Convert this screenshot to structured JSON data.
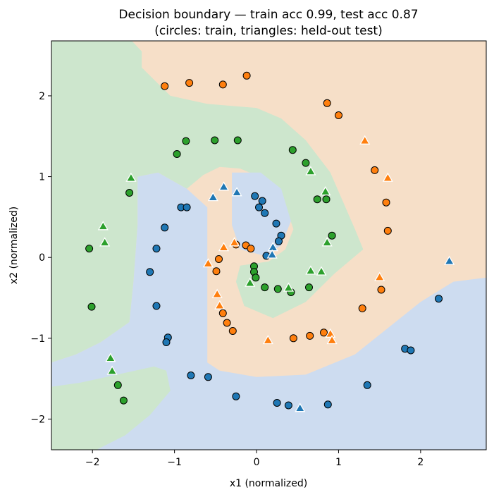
{
  "chart_data": {
    "type": "scatter",
    "title": "Decision boundary — train acc 0.99, test acc 0.87",
    "subtitle": "(circles: train, triangles: held-out test)",
    "xlabel": "x1 (normalized)",
    "ylabel": "x2 (normalized)",
    "xlim": [
      -2.5,
      2.8
    ],
    "ylim": [
      -2.38,
      2.68
    ],
    "xticks": [
      -2,
      -1,
      0,
      1,
      2
    ],
    "yticks": [
      -2,
      -1,
      0,
      1,
      2
    ],
    "grid": false,
    "colors": {
      "class_blue": "#1f77b4",
      "class_orange": "#ff7f0e",
      "class_green": "#2ca02c",
      "region_blue": "#cddcf0",
      "region_orange": "#f6dfc8",
      "region_green": "#cde6cd"
    },
    "regions": {
      "green": [
        [
          -2.5,
          2.68
        ],
        [
          -1.52,
          2.68
        ],
        [
          -1.4,
          2.55
        ],
        [
          -1.4,
          2.35
        ],
        [
          -1.05,
          2.0
        ],
        [
          -0.6,
          1.9
        ],
        [
          0.0,
          1.85
        ],
        [
          0.3,
          1.72
        ],
        [
          0.6,
          1.45
        ],
        [
          0.9,
          1.05
        ],
        [
          1.2,
          0.35
        ],
        [
          1.3,
          0.1
        ],
        [
          0.95,
          -0.2
        ],
        [
          0.6,
          -0.55
        ],
        [
          0.2,
          -0.75
        ],
        [
          -0.15,
          -0.6
        ],
        [
          -0.25,
          -0.3
        ],
        [
          -0.2,
          -0.1
        ],
        [
          0.15,
          -0.05
        ],
        [
          0.35,
          0.1
        ],
        [
          0.45,
          0.35
        ],
        [
          0.35,
          0.65
        ],
        [
          0.15,
          0.95
        ],
        [
          -0.2,
          1.1
        ],
        [
          -0.45,
          1.12
        ],
        [
          -0.65,
          1.02
        ],
        [
          -0.85,
          0.85
        ],
        [
          -1.2,
          1.05
        ],
        [
          -1.45,
          1.0
        ],
        [
          -1.45,
          0.4
        ],
        [
          -1.5,
          -0.3
        ],
        [
          -1.55,
          -0.8
        ],
        [
          -1.9,
          -1.05
        ],
        [
          -2.2,
          -1.2
        ],
        [
          -2.5,
          -1.3
        ]
      ],
      "blue": [
        [
          -2.5,
          -1.3
        ],
        [
          -2.2,
          -1.2
        ],
        [
          -1.9,
          -1.05
        ],
        [
          -1.55,
          -0.8
        ],
        [
          -1.5,
          -0.3
        ],
        [
          -1.45,
          0.4
        ],
        [
          -1.45,
          1.0
        ],
        [
          -1.2,
          1.05
        ],
        [
          -0.85,
          0.85
        ],
        [
          -0.6,
          0.62
        ],
        [
          -0.6,
          -1.3
        ],
        [
          -0.45,
          -1.4
        ],
        [
          0.0,
          -1.48
        ],
        [
          0.6,
          -1.45
        ],
        [
          1.2,
          -1.2
        ],
        [
          2.0,
          -0.55
        ],
        [
          2.4,
          -0.3
        ],
        [
          2.8,
          -0.25
        ],
        [
          2.8,
          -2.38
        ],
        [
          -2.5,
          -2.38
        ]
      ],
      "blue_inner": [
        [
          -0.3,
          1.05
        ],
        [
          0.05,
          1.05
        ],
        [
          0.3,
          0.85
        ],
        [
          0.42,
          0.45
        ],
        [
          0.3,
          0.15
        ],
        [
          0.1,
          0.02
        ],
        [
          -0.2,
          0.1
        ],
        [
          -0.3,
          0.4
        ]
      ],
      "green_bottom": [
        [
          -2.5,
          -1.6
        ],
        [
          -2.15,
          -1.55
        ],
        [
          -1.25,
          -1.35
        ],
        [
          -1.1,
          -1.4
        ],
        [
          -1.05,
          -1.65
        ],
        [
          -1.3,
          -1.95
        ],
        [
          -1.6,
          -2.2
        ],
        [
          -1.95,
          -2.38
        ],
        [
          -2.5,
          -2.38
        ]
      ]
    },
    "series": [
      {
        "name": "circles: train",
        "marker": "circle",
        "points": [
          {
            "x": -1.12,
            "y": 2.12,
            "c": "orange"
          },
          {
            "x": -0.82,
            "y": 2.16,
            "c": "orange"
          },
          {
            "x": -0.41,
            "y": 2.14,
            "c": "orange"
          },
          {
            "x": -0.12,
            "y": 2.25,
            "c": "orange"
          },
          {
            "x": 0.86,
            "y": 1.91,
            "c": "orange"
          },
          {
            "x": 1.0,
            "y": 1.76,
            "c": "orange"
          },
          {
            "x": 1.44,
            "y": 1.08,
            "c": "orange"
          },
          {
            "x": 1.58,
            "y": 0.68,
            "c": "orange"
          },
          {
            "x": 1.6,
            "y": 0.33,
            "c": "orange"
          },
          {
            "x": -0.25,
            "y": 0.16,
            "c": "orange"
          },
          {
            "x": -0.13,
            "y": 0.15,
            "c": "orange"
          },
          {
            "x": -0.07,
            "y": 0.11,
            "c": "orange"
          },
          {
            "x": -0.46,
            "y": -0.02,
            "c": "orange"
          },
          {
            "x": -0.49,
            "y": -0.17,
            "c": "orange"
          },
          {
            "x": -0.41,
            "y": -0.69,
            "c": "orange"
          },
          {
            "x": -0.36,
            "y": -0.81,
            "c": "orange"
          },
          {
            "x": -0.29,
            "y": -0.91,
            "c": "orange"
          },
          {
            "x": 0.45,
            "y": -1.0,
            "c": "orange"
          },
          {
            "x": 0.65,
            "y": -0.97,
            "c": "orange"
          },
          {
            "x": 0.82,
            "y": -0.93,
            "c": "orange"
          },
          {
            "x": 1.29,
            "y": -0.63,
            "c": "orange"
          },
          {
            "x": 1.52,
            "y": -0.4,
            "c": "orange"
          },
          {
            "x": -0.97,
            "y": 1.28,
            "c": "green"
          },
          {
            "x": -0.86,
            "y": 1.44,
            "c": "green"
          },
          {
            "x": -0.51,
            "y": 1.45,
            "c": "green"
          },
          {
            "x": -0.23,
            "y": 1.45,
            "c": "green"
          },
          {
            "x": 0.44,
            "y": 1.33,
            "c": "green"
          },
          {
            "x": 0.6,
            "y": 1.17,
            "c": "green"
          },
          {
            "x": 0.74,
            "y": 0.72,
            "c": "green"
          },
          {
            "x": 0.85,
            "y": 0.72,
            "c": "green"
          },
          {
            "x": 0.92,
            "y": 0.27,
            "c": "green"
          },
          {
            "x": -1.55,
            "y": 0.8,
            "c": "green"
          },
          {
            "x": -2.04,
            "y": 0.11,
            "c": "green"
          },
          {
            "x": -2.01,
            "y": -0.61,
            "c": "green"
          },
          {
            "x": -0.03,
            "y": -0.11,
            "c": "green"
          },
          {
            "x": -0.03,
            "y": -0.18,
            "c": "green"
          },
          {
            "x": -0.01,
            "y": -0.25,
            "c": "green"
          },
          {
            "x": 0.1,
            "y": -0.37,
            "c": "green"
          },
          {
            "x": 0.26,
            "y": -0.39,
            "c": "green"
          },
          {
            "x": 0.42,
            "y": -0.43,
            "c": "green"
          },
          {
            "x": 0.64,
            "y": -0.37,
            "c": "green"
          },
          {
            "x": -1.69,
            "y": -1.58,
            "c": "green"
          },
          {
            "x": -1.62,
            "y": -1.77,
            "c": "green"
          },
          {
            "x": -0.02,
            "y": 0.76,
            "c": "blue"
          },
          {
            "x": 0.07,
            "y": 0.7,
            "c": "blue"
          },
          {
            "x": 0.03,
            "y": 0.62,
            "c": "blue"
          },
          {
            "x": 0.1,
            "y": 0.55,
            "c": "blue"
          },
          {
            "x": 0.24,
            "y": 0.42,
            "c": "blue"
          },
          {
            "x": 0.3,
            "y": 0.27,
            "c": "blue"
          },
          {
            "x": 0.27,
            "y": 0.2,
            "c": "blue"
          },
          {
            "x": 0.12,
            "y": 0.02,
            "c": "blue"
          },
          {
            "x": -0.92,
            "y": 0.62,
            "c": "blue"
          },
          {
            "x": -0.85,
            "y": 0.62,
            "c": "blue"
          },
          {
            "x": -1.12,
            "y": 0.37,
            "c": "blue"
          },
          {
            "x": -1.22,
            "y": 0.11,
            "c": "blue"
          },
          {
            "x": -1.3,
            "y": -0.18,
            "c": "blue"
          },
          {
            "x": -1.22,
            "y": -0.6,
            "c": "blue"
          },
          {
            "x": -1.08,
            "y": -0.99,
            "c": "blue"
          },
          {
            "x": -1.1,
            "y": -1.05,
            "c": "blue"
          },
          {
            "x": -0.8,
            "y": -1.46,
            "c": "blue"
          },
          {
            "x": -0.59,
            "y": -1.48,
            "c": "blue"
          },
          {
            "x": -0.25,
            "y": -1.72,
            "c": "blue"
          },
          {
            "x": 0.25,
            "y": -1.8,
            "c": "blue"
          },
          {
            "x": 0.39,
            "y": -1.83,
            "c": "blue"
          },
          {
            "x": 0.87,
            "y": -1.82,
            "c": "blue"
          },
          {
            "x": 1.35,
            "y": -1.58,
            "c": "blue"
          },
          {
            "x": 1.81,
            "y": -1.13,
            "c": "blue"
          },
          {
            "x": 1.88,
            "y": -1.15,
            "c": "blue"
          },
          {
            "x": 2.22,
            "y": -0.51,
            "c": "blue"
          }
        ]
      },
      {
        "name": "triangles: held-out test",
        "marker": "triangle",
        "points": [
          {
            "x": 1.32,
            "y": 1.44,
            "c": "orange"
          },
          {
            "x": 1.6,
            "y": 0.98,
            "c": "orange"
          },
          {
            "x": -0.4,
            "y": 0.12,
            "c": "orange"
          },
          {
            "x": -0.27,
            "y": 0.18,
            "c": "orange"
          },
          {
            "x": -0.59,
            "y": -0.08,
            "c": "orange"
          },
          {
            "x": -0.48,
            "y": -0.46,
            "c": "orange"
          },
          {
            "x": -0.45,
            "y": -0.6,
            "c": "orange"
          },
          {
            "x": 1.5,
            "y": -0.25,
            "c": "orange"
          },
          {
            "x": 0.14,
            "y": -1.03,
            "c": "orange"
          },
          {
            "x": 0.9,
            "y": -0.95,
            "c": "orange"
          },
          {
            "x": 0.92,
            "y": -1.03,
            "c": "orange"
          },
          {
            "x": 0.66,
            "y": 1.06,
            "c": "green"
          },
          {
            "x": 0.84,
            "y": 0.81,
            "c": "green"
          },
          {
            "x": 0.86,
            "y": 0.18,
            "c": "green"
          },
          {
            "x": -1.87,
            "y": 0.38,
            "c": "green"
          },
          {
            "x": -1.85,
            "y": 0.18,
            "c": "green"
          },
          {
            "x": -1.53,
            "y": 0.98,
            "c": "green"
          },
          {
            "x": -0.08,
            "y": -0.32,
            "c": "green"
          },
          {
            "x": 0.39,
            "y": -0.38,
            "c": "green"
          },
          {
            "x": 0.66,
            "y": -0.17,
            "c": "green"
          },
          {
            "x": 0.79,
            "y": -0.18,
            "c": "green"
          },
          {
            "x": -1.78,
            "y": -1.25,
            "c": "green"
          },
          {
            "x": -1.76,
            "y": -1.41,
            "c": "green"
          },
          {
            "x": -0.4,
            "y": 0.87,
            "c": "blue"
          },
          {
            "x": -0.53,
            "y": 0.74,
            "c": "blue"
          },
          {
            "x": -0.24,
            "y": 0.8,
            "c": "blue"
          },
          {
            "x": 0.2,
            "y": 0.12,
            "c": "blue"
          },
          {
            "x": 0.19,
            "y": 0.03,
            "c": "blue"
          },
          {
            "x": 2.35,
            "y": -0.05,
            "c": "blue"
          },
          {
            "x": 0.53,
            "y": -1.87,
            "c": "blue"
          }
        ]
      }
    ]
  }
}
